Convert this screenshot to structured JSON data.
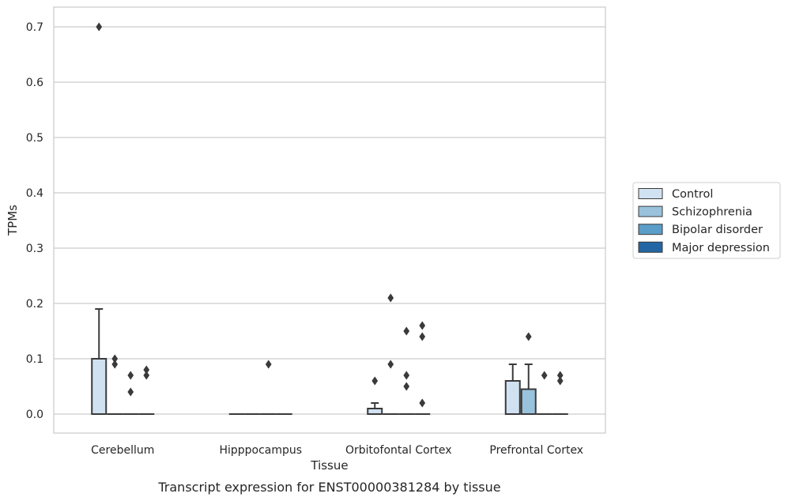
{
  "chart_data": {
    "type": "box",
    "xlabel": "Tissue",
    "ylabel": "TPMs",
    "caption": "Transcript expression for ENST00000381284 by tissue",
    "ylim": [
      -0.035,
      0.735
    ],
    "yticks": [
      0.0,
      0.1,
      0.2,
      0.3,
      0.4,
      0.5,
      0.6,
      0.7
    ],
    "ytick_labels": [
      "0.0",
      "0.1",
      "0.2",
      "0.3",
      "0.4",
      "0.5",
      "0.6",
      "0.7"
    ],
    "grid": "horizontal",
    "legend_position": "right",
    "categories": [
      "Cerebellum",
      "Hipppocampus",
      "Orbitofontal Cortex",
      "Prefrontal Cortex"
    ],
    "series": [
      {
        "name": "Control",
        "color": "#d0e1f1"
      },
      {
        "name": "Schizophrenia",
        "color": "#99c2dc"
      },
      {
        "name": "Bipolar disorder",
        "color": "#5a9dc8"
      },
      {
        "name": "Major depression",
        "color": "#2466a4"
      }
    ],
    "boxes": [
      [
        {
          "q1": 0,
          "median": 0,
          "q3": 0.1,
          "whisker_low": 0,
          "whisker_high": 0.19,
          "outliers": [
            0.7
          ]
        },
        {
          "q1": 0,
          "median": 0,
          "q3": 0,
          "whisker_low": 0,
          "whisker_high": 0,
          "outliers": [
            0.09,
            0.1
          ]
        },
        {
          "q1": 0,
          "median": 0,
          "q3": 0,
          "whisker_low": 0,
          "whisker_high": 0,
          "outliers": [
            0.04,
            0.07
          ]
        },
        {
          "q1": 0,
          "median": 0,
          "q3": 0,
          "whisker_low": 0,
          "whisker_high": 0,
          "outliers": [
            0.07,
            0.08
          ]
        }
      ],
      [
        {
          "q1": 0,
          "median": 0,
          "q3": 0,
          "whisker_low": 0,
          "whisker_high": 0,
          "outliers": []
        },
        {
          "q1": 0,
          "median": 0,
          "q3": 0,
          "whisker_low": 0,
          "whisker_high": 0,
          "outliers": []
        },
        {
          "q1": 0,
          "median": 0,
          "q3": 0,
          "whisker_low": 0,
          "whisker_high": 0,
          "outliers": [
            0.09
          ]
        },
        {
          "q1": 0,
          "median": 0,
          "q3": 0,
          "whisker_low": 0,
          "whisker_high": 0,
          "outliers": []
        }
      ],
      [
        {
          "q1": 0,
          "median": 0,
          "q3": 0.01,
          "whisker_low": 0,
          "whisker_high": 0.02,
          "outliers": [
            0.06
          ]
        },
        {
          "q1": 0,
          "median": 0,
          "q3": 0,
          "whisker_low": 0,
          "whisker_high": 0,
          "outliers": [
            0.09,
            0.21
          ]
        },
        {
          "q1": 0,
          "median": 0,
          "q3": 0,
          "whisker_low": 0,
          "whisker_high": 0,
          "outliers": [
            0.05,
            0.07,
            0.15
          ]
        },
        {
          "q1": 0,
          "median": 0,
          "q3": 0,
          "whisker_low": 0,
          "whisker_high": 0,
          "outliers": [
            0.02,
            0.14,
            0.16
          ]
        }
      ],
      [
        {
          "q1": 0,
          "median": 0,
          "q3": 0.06,
          "whisker_low": 0,
          "whisker_high": 0.09,
          "outliers": []
        },
        {
          "q1": 0,
          "median": 0,
          "q3": 0.045,
          "whisker_low": 0,
          "whisker_high": 0.09,
          "outliers": [
            0.14
          ]
        },
        {
          "q1": 0,
          "median": 0,
          "q3": 0,
          "whisker_low": 0,
          "whisker_high": 0,
          "outliers": [
            0.07
          ]
        },
        {
          "q1": 0,
          "median": 0,
          "q3": 0,
          "whisker_low": 0,
          "whisker_high": 0,
          "outliers": [
            0.06,
            0.07
          ]
        }
      ]
    ]
  }
}
